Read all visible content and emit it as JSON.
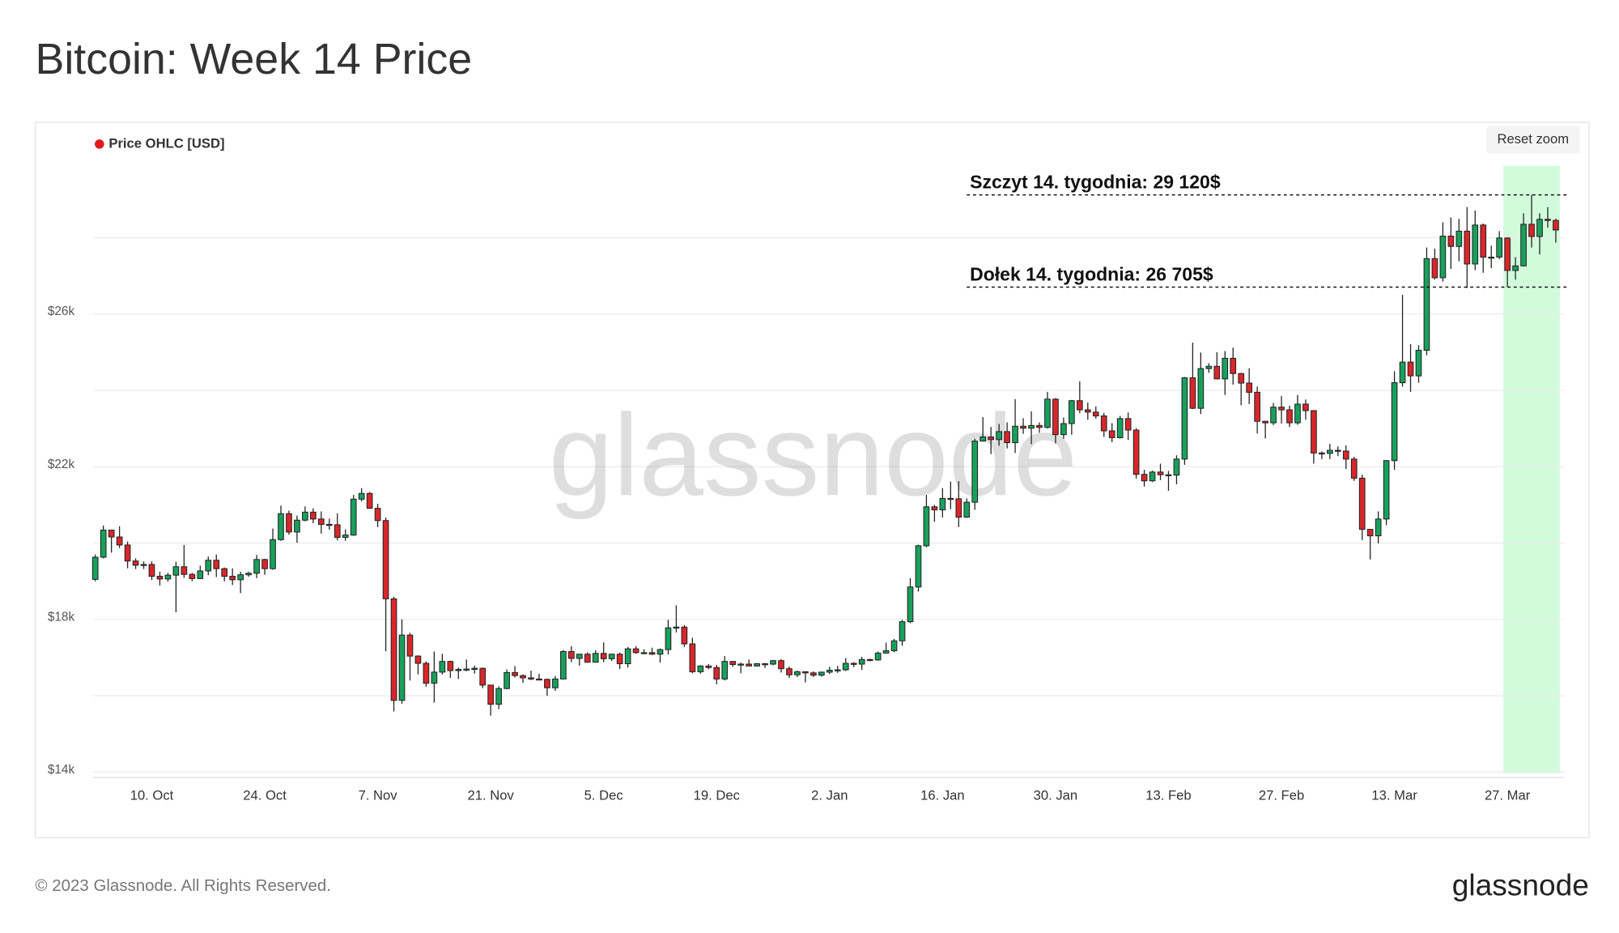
{
  "chart_data": {
    "type": "candlestick",
    "title": "Bitcoin: Week 14 Price",
    "legend": "Price OHLC [USD]",
    "legend_color": "#e31a1c",
    "button": "Reset zoom",
    "watermark": "glassnode",
    "footer": "© 2023 Glassnode. All Rights Reserved.",
    "logo": "glassnode",
    "up_color": "#18a05c",
    "down_color": "#d9262a",
    "grid": true,
    "ylim": [
      13860,
      29880
    ],
    "yticks": [
      {
        "value": 14000,
        "label": "$14k"
      },
      {
        "value": 18000,
        "label": "$18k"
      },
      {
        "value": 22000,
        "label": "$22k"
      },
      {
        "value": 26000,
        "label": "$26k"
      }
    ],
    "minor_yticks": [
      16000,
      20000,
      24000,
      28000
    ],
    "xticks": [
      "10. Oct",
      "24. Oct",
      "7. Nov",
      "21. Nov",
      "5. Dec",
      "19. Dec",
      "2. Jan",
      "16. Jan",
      "30. Jan",
      "13. Feb",
      "27. Feb",
      "13. Mar",
      "27. Mar"
    ],
    "highlight": {
      "from": "27. Mar",
      "to": "2. Apr",
      "color": "#d2fbdc"
    },
    "annotations": [
      {
        "text": "Szczyt 14. tygodnia: 29 120$",
        "value": 29120,
        "from": "19. Jan"
      },
      {
        "text": "Dołek 14. tygodnia: 26 705$",
        "value": 26705,
        "from": "19. Jan"
      }
    ],
    "categories": [
      "3. Oct",
      "4. Oct",
      "5. Oct",
      "6. Oct",
      "7. Oct",
      "8. Oct",
      "9. Oct",
      "10. Oct",
      "11. Oct",
      "12. Oct",
      "13. Oct",
      "14. Oct",
      "15. Oct",
      "16. Oct",
      "17. Oct",
      "18. Oct",
      "19. Oct",
      "20. Oct",
      "21. Oct",
      "22. Oct",
      "23. Oct",
      "24. Oct",
      "25. Oct",
      "26. Oct",
      "27. Oct",
      "28. Oct",
      "29. Oct",
      "30. Oct",
      "31. Oct",
      "1. Nov",
      "2. Nov",
      "3. Nov",
      "4. Nov",
      "5. Nov",
      "6. Nov",
      "7. Nov",
      "8. Nov",
      "9. Nov",
      "10. Nov",
      "11. Nov",
      "12. Nov",
      "13. Nov",
      "14. Nov",
      "15. Nov",
      "16. Nov",
      "17. Nov",
      "18. Nov",
      "19. Nov",
      "20. Nov",
      "21. Nov",
      "22. Nov",
      "23. Nov",
      "24. Nov",
      "25. Nov",
      "26. Nov",
      "27. Nov",
      "28. Nov",
      "29. Nov",
      "30. Nov",
      "1. Dec",
      "2. Dec",
      "3. Dec",
      "4. Dec",
      "5. Dec",
      "6. Dec",
      "7. Dec",
      "8. Dec",
      "9. Dec",
      "10. Dec",
      "11. Dec",
      "12. Dec",
      "13. Dec",
      "14. Dec",
      "15. Dec",
      "16. Dec",
      "17. Dec",
      "18. Dec",
      "19. Dec",
      "20. Dec",
      "21. Dec",
      "22. Dec",
      "23. Dec",
      "24. Dec",
      "25. Dec",
      "26. Dec",
      "27. Dec",
      "28. Dec",
      "29. Dec",
      "30. Dec",
      "31. Dec",
      "1. Jan",
      "2. Jan",
      "3. Jan",
      "4. Jan",
      "5. Jan",
      "6. Jan",
      "7. Jan",
      "8. Jan",
      "9. Jan",
      "10. Jan",
      "11. Jan",
      "12. Jan",
      "13. Jan",
      "14. Jan",
      "15. Jan",
      "16. Jan",
      "17. Jan",
      "18. Jan",
      "19. Jan",
      "20. Jan",
      "21. Jan",
      "22. Jan",
      "23. Jan",
      "24. Jan",
      "25. Jan",
      "26. Jan",
      "27. Jan",
      "28. Jan",
      "29. Jan",
      "30. Jan",
      "31. Jan",
      "1. Feb",
      "2. Feb",
      "3. Feb",
      "4. Feb",
      "5. Feb",
      "6. Feb",
      "7. Feb",
      "8. Feb",
      "9. Feb",
      "10. Feb",
      "11. Feb",
      "12. Feb",
      "13. Feb",
      "14. Feb",
      "15. Feb",
      "16. Feb",
      "17. Feb",
      "18. Feb",
      "19. Feb",
      "20. Feb",
      "21. Feb",
      "22. Feb",
      "23. Feb",
      "24. Feb",
      "25. Feb",
      "26. Feb",
      "27. Feb",
      "28. Feb",
      "1. Mar",
      "2. Mar",
      "3. Mar",
      "4. Mar",
      "5. Mar",
      "6. Mar",
      "7. Mar",
      "8. Mar",
      "9. Mar",
      "10. Mar",
      "11. Mar",
      "12. Mar",
      "13. Mar",
      "14. Mar",
      "15. Mar",
      "16. Mar",
      "17. Mar",
      "18. Mar",
      "19. Mar",
      "20. Mar",
      "21. Mar",
      "22. Mar",
      "23. Mar",
      "24. Mar",
      "25. Mar",
      "26. Mar",
      "27. Mar",
      "28. Mar",
      "29. Mar",
      "30. Mar",
      "31. Mar",
      "1. Apr",
      "2. Apr"
    ],
    "ohlc": [
      [
        19050,
        19700,
        19000,
        19630
      ],
      [
        19630,
        20460,
        19600,
        20340
      ],
      [
        20340,
        20350,
        19750,
        20160
      ],
      [
        20160,
        20440,
        19870,
        19950
      ],
      [
        19950,
        20040,
        19340,
        19530
      ],
      [
        19530,
        19600,
        19320,
        19420
      ],
      [
        19420,
        19520,
        19320,
        19440
      ],
      [
        19440,
        19520,
        19030,
        19130
      ],
      [
        19130,
        19250,
        18890,
        19060
      ],
      [
        19060,
        19220,
        18990,
        19160
      ],
      [
        19160,
        19510,
        18190,
        19380
      ],
      [
        19380,
        19950,
        19090,
        19180
      ],
      [
        19180,
        19220,
        19000,
        19070
      ],
      [
        19070,
        19410,
        19060,
        19270
      ],
      [
        19270,
        19650,
        19160,
        19550
      ],
      [
        19550,
        19700,
        19110,
        19330
      ],
      [
        19330,
        19360,
        19000,
        19130
      ],
      [
        19130,
        19340,
        18900,
        19040
      ],
      [
        19040,
        19250,
        18690,
        19170
      ],
      [
        19170,
        19250,
        19120,
        19210
      ],
      [
        19210,
        19690,
        19080,
        19570
      ],
      [
        19570,
        19590,
        19170,
        19330
      ],
      [
        19330,
        20380,
        19300,
        20090
      ],
      [
        20090,
        20980,
        20060,
        20770
      ],
      [
        20770,
        20850,
        20220,
        20290
      ],
      [
        20290,
        20720,
        20010,
        20600
      ],
      [
        20600,
        20960,
        20570,
        20810
      ],
      [
        20810,
        20910,
        20520,
        20630
      ],
      [
        20630,
        20830,
        20250,
        20490
      ],
      [
        20490,
        20640,
        20350,
        20480
      ],
      [
        20480,
        20780,
        20070,
        20150
      ],
      [
        20150,
        20360,
        20060,
        20210
      ],
      [
        20210,
        21260,
        20190,
        21150
      ],
      [
        21150,
        21440,
        21090,
        21300
      ],
      [
        21300,
        21340,
        20900,
        20910
      ],
      [
        20910,
        21030,
        20420,
        20590
      ],
      [
        20590,
        20670,
        17170,
        18540
      ],
      [
        18540,
        18590,
        15590,
        15880
      ],
      [
        15880,
        18000,
        15790,
        17590
      ],
      [
        17590,
        17650,
        16400,
        17040
      ],
      [
        17040,
        17060,
        16560,
        16850
      ],
      [
        16850,
        16900,
        16240,
        16330
      ],
      [
        16330,
        17160,
        15820,
        16620
      ],
      [
        16620,
        17100,
        16560,
        16900
      ],
      [
        16900,
        16920,
        16470,
        16660
      ],
      [
        16660,
        16740,
        16440,
        16690
      ],
      [
        16690,
        16950,
        16640,
        16700
      ],
      [
        16700,
        16790,
        16580,
        16720
      ],
      [
        16720,
        16740,
        16200,
        16280
      ],
      [
        16280,
        16290,
        15480,
        15780
      ],
      [
        15780,
        16250,
        15650,
        16190
      ],
      [
        16190,
        16690,
        16170,
        16610
      ],
      [
        16610,
        16780,
        16480,
        16530
      ],
      [
        16530,
        16560,
        16340,
        16470
      ],
      [
        16470,
        16660,
        16410,
        16440
      ],
      [
        16440,
        16580,
        16420,
        16430
      ],
      [
        16430,
        16450,
        16000,
        16210
      ],
      [
        16210,
        16520,
        16130,
        16440
      ],
      [
        16440,
        17200,
        16430,
        17160
      ],
      [
        17160,
        17300,
        16880,
        16980
      ],
      [
        16980,
        17100,
        16790,
        17090
      ],
      [
        17090,
        17140,
        16870,
        16880
      ],
      [
        16880,
        17190,
        16880,
        17110
      ],
      [
        17110,
        17400,
        16880,
        16970
      ],
      [
        16970,
        17100,
        16910,
        17090
      ],
      [
        17090,
        17130,
        16700,
        16840
      ],
      [
        16840,
        17280,
        16740,
        17230
      ],
      [
        17230,
        17300,
        17100,
        17130
      ],
      [
        17130,
        17220,
        17090,
        17130
      ],
      [
        17130,
        17260,
        17070,
        17090
      ],
      [
        17090,
        17240,
        16870,
        17210
      ],
      [
        17210,
        17990,
        17080,
        17780
      ],
      [
        17780,
        18370,
        17660,
        17800
      ],
      [
        17800,
        17850,
        17280,
        17360
      ],
      [
        17360,
        17520,
        16590,
        16630
      ],
      [
        16630,
        16800,
        16580,
        16780
      ],
      [
        16780,
        16830,
        16700,
        16740
      ],
      [
        16740,
        16810,
        16300,
        16440
      ],
      [
        16440,
        17040,
        16400,
        16900
      ],
      [
        16900,
        16910,
        16760,
        16820
      ],
      [
        16820,
        16870,
        16590,
        16830
      ],
      [
        16830,
        16950,
        16780,
        16780
      ],
      [
        16780,
        16860,
        16770,
        16840
      ],
      [
        16840,
        16860,
        16730,
        16830
      ],
      [
        16830,
        16940,
        16800,
        16920
      ],
      [
        16920,
        16960,
        16610,
        16710
      ],
      [
        16710,
        16770,
        16470,
        16550
      ],
      [
        16550,
        16660,
        16490,
        16630
      ],
      [
        16630,
        16640,
        16350,
        16600
      ],
      [
        16600,
        16640,
        16490,
        16540
      ],
      [
        16540,
        16630,
        16500,
        16620
      ],
      [
        16620,
        16760,
        16570,
        16670
      ],
      [
        16670,
        16780,
        16600,
        16680
      ],
      [
        16680,
        16990,
        16650,
        16850
      ],
      [
        16850,
        16880,
        16750,
        16830
      ],
      [
        16830,
        17020,
        16680,
        16950
      ],
      [
        16950,
        16970,
        16910,
        16940
      ],
      [
        16940,
        17160,
        16920,
        17120
      ],
      [
        17120,
        17390,
        17100,
        17180
      ],
      [
        17180,
        17490,
        17140,
        17440
      ],
      [
        17440,
        17990,
        17310,
        17940
      ],
      [
        17940,
        19080,
        17900,
        18850
      ],
      [
        18850,
        19960,
        18730,
        19930
      ],
      [
        19930,
        21260,
        19890,
        20950
      ],
      [
        20950,
        21000,
        20560,
        20870
      ],
      [
        20870,
        21440,
        20670,
        21170
      ],
      [
        21170,
        21610,
        20890,
        21160
      ],
      [
        21160,
        21620,
        20420,
        20680
      ],
      [
        20680,
        21170,
        20660,
        21070
      ],
      [
        21070,
        22730,
        20870,
        22670
      ],
      [
        22670,
        23300,
        22660,
        22780
      ],
      [
        22780,
        23040,
        22330,
        22710
      ],
      [
        22710,
        23120,
        22550,
        22920
      ],
      [
        22920,
        23160,
        22480,
        22630
      ],
      [
        22630,
        23770,
        22360,
        23060
      ],
      [
        23060,
        23270,
        22860,
        23010
      ],
      [
        23010,
        23450,
        22590,
        23080
      ],
      [
        23080,
        23160,
        22890,
        23030
      ],
      [
        23030,
        23960,
        23000,
        23770
      ],
      [
        23770,
        23800,
        22610,
        22840
      ],
      [
        22840,
        23290,
        22730,
        23130
      ],
      [
        23130,
        23750,
        22840,
        23730
      ],
      [
        23730,
        24240,
        23400,
        23490
      ],
      [
        23490,
        23680,
        23230,
        23430
      ],
      [
        23430,
        23580,
        23260,
        23330
      ],
      [
        23330,
        23410,
        22780,
        22940
      ],
      [
        22940,
        23140,
        22640,
        22760
      ],
      [
        22760,
        23330,
        22740,
        23260
      ],
      [
        23260,
        23420,
        22700,
        22960
      ],
      [
        22960,
        23010,
        21690,
        21800
      ],
      [
        21800,
        21920,
        21480,
        21630
      ],
      [
        21630,
        21900,
        21600,
        21860
      ],
      [
        21860,
        22080,
        21650,
        21790
      ],
      [
        21790,
        21890,
        21370,
        21780
      ],
      [
        21780,
        22300,
        21540,
        22200
      ],
      [
        22200,
        24350,
        22050,
        24330
      ],
      [
        24330,
        25250,
        23510,
        23530
      ],
      [
        23530,
        24990,
        23380,
        24570
      ],
      [
        24570,
        24710,
        24460,
        24630
      ],
      [
        24630,
        25000,
        24290,
        24300
      ],
      [
        24300,
        25030,
        23880,
        24840
      ],
      [
        24840,
        25120,
        24150,
        24440
      ],
      [
        24440,
        24460,
        23610,
        24190
      ],
      [
        24190,
        24580,
        23640,
        23950
      ],
      [
        23950,
        24100,
        22870,
        23190
      ],
      [
        23190,
        23200,
        22740,
        23150
      ],
      [
        23150,
        23670,
        23090,
        23560
      ],
      [
        23560,
        23850,
        23130,
        23490
      ],
      [
        23490,
        23600,
        23040,
        23150
      ],
      [
        23150,
        23880,
        23100,
        23640
      ],
      [
        23640,
        23760,
        23230,
        23470
      ],
      [
        23470,
        23480,
        22080,
        22360
      ],
      [
        22360,
        22400,
        22200,
        22350
      ],
      [
        22350,
        22600,
        22200,
        22430
      ],
      [
        22430,
        22530,
        22280,
        22410
      ],
      [
        22410,
        22560,
        21940,
        22200
      ],
      [
        22200,
        22260,
        21630,
        21700
      ],
      [
        21700,
        21790,
        20080,
        20360
      ],
      [
        20360,
        20370,
        19570,
        20190
      ],
      [
        20190,
        20830,
        19990,
        20630
      ],
      [
        20630,
        22170,
        20470,
        22160
      ],
      [
        22160,
        24500,
        21920,
        24200
      ],
      [
        24200,
        26500,
        24100,
        24740
      ],
      [
        24740,
        25210,
        23960,
        24380
      ],
      [
        24380,
        25180,
        24200,
        25050
      ],
      [
        25050,
        27740,
        24920,
        27450
      ],
      [
        27450,
        27710,
        26900,
        26950
      ],
      [
        26950,
        28400,
        26850,
        28040
      ],
      [
        28040,
        28530,
        27180,
        27770
      ],
      [
        27770,
        28490,
        27380,
        28170
      ],
      [
        28170,
        28800,
        26680,
        27310
      ],
      [
        27310,
        28710,
        27150,
        28330
      ],
      [
        28330,
        28370,
        27080,
        27490
      ],
      [
        27490,
        27790,
        27200,
        27490
      ],
      [
        27490,
        28170,
        27440,
        27990
      ],
      [
        27990,
        28010,
        26705,
        27140
      ],
      [
        27140,
        27490,
        26900,
        27260
      ],
      [
        27260,
        28640,
        27250,
        28350
      ],
      [
        28350,
        29120,
        27740,
        28030
      ],
      [
        28030,
        28640,
        27560,
        28480
      ],
      [
        28480,
        28800,
        28260,
        28450
      ],
      [
        28450,
        28500,
        27870,
        28200
      ]
    ]
  }
}
